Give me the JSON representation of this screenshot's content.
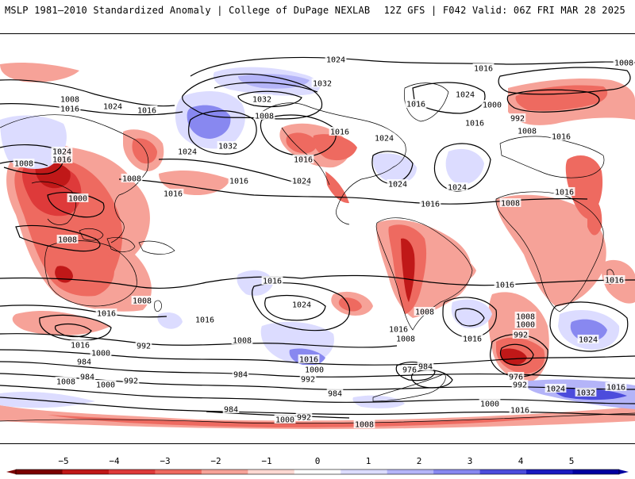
{
  "header": {
    "left": "MSLP 1981–2010 Standardized Anomaly | College of DuPage NEXLAB",
    "right": "12Z GFS | F042 Valid: 06Z FRI MAR 28 2025"
  },
  "map": {
    "type": "global-mslp-anomaly",
    "projection": "equirectangular",
    "isobar_labels": [
      {
        "text": "1024",
        "role": "isobar"
      },
      {
        "text": "1016",
        "role": "isobar"
      },
      {
        "text": "1008",
        "role": "isobar"
      },
      {
        "text": "1000",
        "role": "isobar"
      },
      {
        "text": "992",
        "role": "isobar"
      },
      {
        "text": "984",
        "role": "isobar"
      },
      {
        "text": "976",
        "role": "isobar"
      },
      {
        "text": "1032",
        "role": "isobar"
      }
    ],
    "isobar_placements": [
      [
        "1024",
        423,
        74
      ],
      [
        "1016",
        609,
        85
      ],
      [
        "1008",
        786,
        78
      ],
      [
        "1008",
        88,
        124
      ],
      [
        "1016",
        88,
        136
      ],
      [
        "1024",
        142,
        133
      ],
      [
        "1016",
        185,
        138
      ],
      [
        "1032",
        406,
        104
      ],
      [
        "1032",
        330,
        124
      ],
      [
        "1016",
        524,
        130
      ],
      [
        "1024",
        586,
        118
      ],
      [
        "1000",
        620,
        131
      ],
      [
        "992",
        652,
        148
      ],
      [
        "1008",
        333,
        145
      ],
      [
        "1016",
        598,
        154
      ],
      [
        "1008",
        664,
        164
      ],
      [
        "1016",
        428,
        165
      ],
      [
        "1024",
        484,
        173
      ],
      [
        "1016",
        707,
        171
      ],
      [
        "1024",
        78,
        190
      ],
      [
        "1016",
        78,
        200
      ],
      [
        "1008",
        30,
        205
      ],
      [
        "1024",
        236,
        190
      ],
      [
        "1032",
        287,
        183
      ],
      [
        "1016",
        382,
        200
      ],
      [
        "1008",
        166,
        224
      ],
      [
        "1016",
        301,
        227
      ],
      [
        "1024",
        380,
        227
      ],
      [
        "1016",
        218,
        243
      ],
      [
        "1024",
        501,
        231
      ],
      [
        "1024",
        576,
        235
      ],
      [
        "1000",
        98,
        249
      ],
      [
        "1016",
        711,
        241
      ],
      [
        "1016",
        542,
        256
      ],
      [
        "1008",
        643,
        255
      ],
      [
        "1008",
        85,
        301
      ],
      [
        "1016",
        343,
        353
      ],
      [
        "1016",
        636,
        358
      ],
      [
        "1016",
        774,
        352
      ],
      [
        "1024",
        380,
        383
      ],
      [
        "1008",
        179,
        378
      ],
      [
        "1016",
        134,
        394
      ],
      [
        "1008",
        535,
        392
      ],
      [
        "1016",
        258,
        402
      ],
      [
        "1008",
        662,
        398
      ],
      [
        "1000",
        662,
        408
      ],
      [
        "1016",
        502,
        414
      ],
      [
        "1008",
        511,
        426
      ],
      [
        "1016",
        595,
        426
      ],
      [
        "992",
        656,
        421
      ],
      [
        "1024",
        741,
        427
      ],
      [
        "1008",
        305,
        428
      ],
      [
        "1016",
        101,
        434
      ],
      [
        "1000",
        127,
        444
      ],
      [
        "992",
        181,
        435
      ],
      [
        "984",
        106,
        455
      ],
      [
        "1016",
        389,
        452
      ],
      [
        "1000",
        396,
        465
      ],
      [
        "976",
        516,
        465
      ],
      [
        "984",
        536,
        461
      ],
      [
        "992",
        388,
        477
      ],
      [
        "984",
        303,
        471
      ],
      [
        "976",
        650,
        474
      ],
      [
        "984",
        110,
        474
      ],
      [
        "1008",
        83,
        480
      ],
      [
        "1000",
        133,
        484
      ],
      [
        "992",
        165,
        479
      ],
      [
        "992",
        655,
        484
      ],
      [
        "984",
        422,
        495
      ],
      [
        "1024",
        700,
        489
      ],
      [
        "1032",
        738,
        494
      ],
      [
        "1016",
        776,
        487
      ],
      [
        "984",
        291,
        515
      ],
      [
        "1000",
        617,
        508
      ],
      [
        "1016",
        655,
        516
      ],
      [
        "1000",
        359,
        528
      ],
      [
        "992",
        383,
        525
      ],
      [
        "1008",
        459,
        534
      ]
    ],
    "colors": {
      "anomaly_negative_strong": "#8b0000",
      "anomaly_negative": "#e03030",
      "anomaly_negative_weak": "#f4a59a",
      "anomaly_positive_weak": "#c8c8ff",
      "anomaly_positive": "#6060f0",
      "anomaly_positive_strong": "#1010c0",
      "isobar": "#000000",
      "coastline": "#000000"
    }
  },
  "colorbar": {
    "labels": [
      "−5",
      "−4",
      "−3",
      "−2",
      "−1",
      "0",
      "1",
      "2",
      "3",
      "4",
      "5"
    ],
    "colors": [
      "#7a0000",
      "#c01818",
      "#de3a3a",
      "#ee6a60",
      "#f6a298",
      "#fdd8d2",
      "#ffffff",
      "#dcdcff",
      "#b4b4f8",
      "#8888f0",
      "#4c4cdc",
      "#1a1ac0",
      "#0000a0"
    ]
  }
}
